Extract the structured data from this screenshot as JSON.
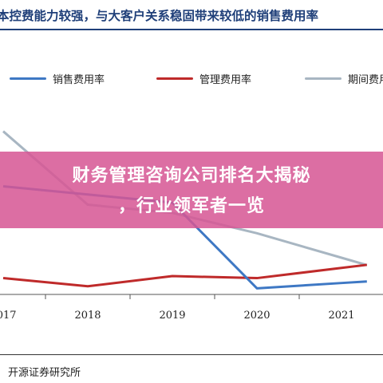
{
  "header": {
    "title": "本控费能力较强，与大客户关系稳固带来较低的销售费用率"
  },
  "banner": {
    "line1": "财务管理咨询公司排名大揭秘",
    "line2": "，行业领军者一览"
  },
  "footer": {
    "source": "开源证券研究所"
  },
  "chart_data": {
    "type": "line",
    "categories": [
      "2017",
      "2018",
      "2019",
      "2020",
      "2021"
    ],
    "series": [
      {
        "name": "销售费用率",
        "color": "#3e78c4",
        "values": [
          26.5,
          24.5,
          22.5,
          1.5,
          2.8
        ]
      },
      {
        "name": "管理费用率",
        "color": "#bf2a2a",
        "values": [
          4.0,
          2.0,
          4.5,
          4.0,
          6.5
        ]
      },
      {
        "name": "期间费用率",
        "color": "#a8b6c2",
        "values": [
          40.0,
          22.0,
          20.0,
          15.0,
          9.0
        ]
      }
    ],
    "ylim": [
      0,
      45
    ],
    "grid": false,
    "legend": "top"
  }
}
